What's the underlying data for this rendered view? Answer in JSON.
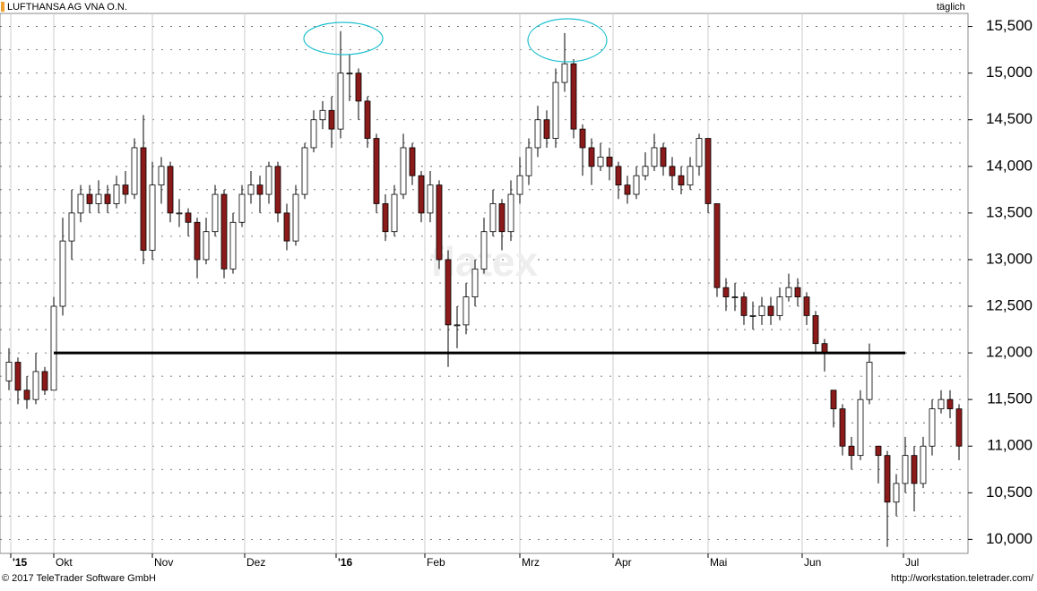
{
  "chart_data": {
    "type": "candlestick",
    "title": "LUFTHANSA AG VNA O.N.",
    "interval_label": "täglich",
    "footer_left": "© 2017 TeleTrader Software GmbH",
    "footer_right": "http://workstation.teletrader.com/",
    "up_color": "#ffffff",
    "down_color": "#8b1a1a",
    "outline_color": "#000000",
    "reference_line": 12000,
    "xlim": [
      -1,
      107
    ],
    "xticks": [
      {
        "value": 0.2,
        "label": "'15"
      },
      {
        "value": 5,
        "label": "Okt"
      },
      {
        "value": 16,
        "label": "Nov"
      },
      {
        "value": 26.3,
        "label": "Dez"
      },
      {
        "value": 36.5,
        "label": "'16"
      },
      {
        "value": 46.4,
        "label": "Feb"
      },
      {
        "value": 57,
        "label": "Mrz"
      },
      {
        "value": 67.4,
        "label": "Apr"
      },
      {
        "value": 78,
        "label": "Mai"
      },
      {
        "value": 88.5,
        "label": "Jun"
      },
      {
        "value": 99.8,
        "label": "Jul"
      }
    ],
    "ylim": [
      9850,
      15640
    ],
    "yticks": [
      {
        "value": 10000,
        "label": "10,000"
      },
      {
        "value": 10500,
        "label": "10,500"
      },
      {
        "value": 11000,
        "label": "11,000"
      },
      {
        "value": 11500,
        "label": "11,500"
      },
      {
        "value": 12000,
        "label": "12,000"
      },
      {
        "value": 12500,
        "label": "12,500"
      },
      {
        "value": 13000,
        "label": "13,000"
      },
      {
        "value": 13500,
        "label": "13,500"
      },
      {
        "value": 14000,
        "label": "14,000"
      },
      {
        "value": 14500,
        "label": "14,500"
      },
      {
        "value": 15000,
        "label": "15,000"
      },
      {
        "value": 15500,
        "label": "15,500"
      }
    ],
    "minor_yticks": [
      10250,
      10750,
      11250,
      11750,
      12250,
      12750,
      13250,
      13750,
      14250,
      14750,
      15250
    ],
    "x": [
      0,
      1,
      2,
      3,
      4,
      5,
      6,
      7,
      8,
      9,
      10,
      11,
      12,
      13,
      14,
      15,
      16,
      17,
      18,
      19,
      20,
      21,
      22,
      23,
      24,
      25,
      26,
      27,
      28,
      29,
      30,
      31,
      32,
      33,
      34,
      35,
      36,
      37,
      38,
      39,
      40,
      41,
      42,
      43,
      44,
      45,
      46,
      47,
      48,
      49,
      50,
      51,
      52,
      53,
      54,
      55,
      56,
      57,
      58,
      59,
      60,
      61,
      62,
      63,
      64,
      65,
      66,
      67,
      68,
      69,
      70,
      71,
      72,
      73,
      74,
      75,
      76,
      77,
      78,
      79,
      80,
      81,
      82,
      83,
      84,
      85,
      86,
      87,
      88,
      89,
      90,
      91,
      92,
      93,
      94,
      95,
      96,
      97,
      98,
      99,
      100,
      101,
      102,
      103,
      104,
      105,
      106
    ],
    "open": [
      11700,
      11900,
      11600,
      11500,
      11800,
      11600,
      12500,
      13200,
      13500,
      13700,
      13600,
      13700,
      13600,
      13800,
      13700,
      14200,
      13100,
      13800,
      14000,
      13500,
      13500,
      13400,
      13000,
      13300,
      13700,
      12900,
      13400,
      13700,
      13800,
      13700,
      14000,
      13500,
      13200,
      13700,
      14200,
      14500,
      14600,
      14400,
      15000,
      15000,
      14700,
      14300,
      13600,
      13300,
      13700,
      14200,
      13900,
      13500,
      13800,
      13000,
      12300,
      12300,
      12600,
      12900,
      13300,
      13600,
      13300,
      13700,
      13900,
      14200,
      14500,
      14300,
      14900,
      15100,
      14400,
      14200,
      14000,
      14100,
      14000,
      13800,
      13700,
      13900,
      14000,
      14200,
      14000,
      13900,
      13800,
      14000,
      14300,
      13600,
      12700,
      12600,
      12600,
      12400,
      12400,
      12500,
      12400,
      12600,
      12700,
      12600,
      12400,
      12100,
      11600,
      11400,
      11000,
      10900,
      11500,
      11000,
      10900,
      10400,
      10600,
      10900,
      10600,
      11000,
      11400,
      11500,
      11400
    ],
    "high": [
      12050,
      11950,
      11750,
      12000,
      11850,
      12600,
      13450,
      13750,
      13800,
      13800,
      13850,
      13800,
      13900,
      13950,
      14300,
      14550,
      14050,
      14100,
      14050,
      13650,
      13550,
      13450,
      13450,
      13800,
      13750,
      13500,
      13800,
      13950,
      13900,
      14050,
      14050,
      13600,
      13800,
      14250,
      14600,
      14700,
      14750,
      15450,
      15200,
      15050,
      14750,
      14350,
      13700,
      13800,
      14350,
      14250,
      13950,
      13950,
      13850,
      13100,
      12500,
      12750,
      13000,
      13450,
      13750,
      13650,
      13850,
      14100,
      14300,
      14650,
      14600,
      15050,
      15430,
      15150,
      14450,
      14300,
      14250,
      14200,
      14050,
      13900,
      14000,
      14150,
      14350,
      14250,
      14100,
      14000,
      14100,
      14350,
      14300,
      13600,
      12800,
      12750,
      12650,
      12550,
      12600,
      12600,
      12700,
      12850,
      12800,
      12650,
      12450,
      12150,
      11600,
      11450,
      11100,
      11600,
      12100,
      11000,
      10950,
      10700,
      11100,
      11000,
      11100,
      11500,
      11600,
      11600,
      11450
    ],
    "low": [
      11600,
      11450,
      11400,
      11450,
      11550,
      11600,
      12400,
      13000,
      13400,
      13500,
      13500,
      13500,
      13550,
      13600,
      13650,
      12950,
      13000,
      13600,
      13400,
      13350,
      13250,
      12800,
      12950,
      13250,
      12800,
      12850,
      13350,
      13600,
      13500,
      13600,
      13400,
      13100,
      13150,
      13650,
      14150,
      14400,
      14200,
      14300,
      14700,
      14500,
      14200,
      13500,
      13200,
      13250,
      13650,
      13800,
      13400,
      13400,
      12900,
      11850,
      12050,
      12200,
      12500,
      12850,
      13250,
      13100,
      13200,
      13600,
      13800,
      14100,
      14200,
      14200,
      14800,
      14300,
      13900,
      13800,
      13950,
      13850,
      13650,
      13600,
      13650,
      13850,
      13950,
      13900,
      13750,
      13700,
      13750,
      13900,
      13500,
      12600,
      12450,
      12450,
      12300,
      12250,
      12300,
      12300,
      12350,
      12550,
      12500,
      12300,
      12000,
      11800,
      11200,
      10900,
      10750,
      10850,
      11450,
      10600,
      9920,
      10250,
      10500,
      10300,
      10550,
      10900,
      11350,
      11300,
      10850
    ],
    "close": [
      11900,
      11600,
      11500,
      11800,
      11600,
      12500,
      13200,
      13500,
      13700,
      13600,
      13700,
      13600,
      13800,
      13700,
      14200,
      13100,
      13800,
      14000,
      13500,
      13500,
      13400,
      13000,
      13300,
      13700,
      12900,
      13400,
      13700,
      13800,
      13700,
      14000,
      13500,
      13200,
      13700,
      14200,
      14500,
      14600,
      14400,
      15000,
      15000,
      14700,
      14300,
      13600,
      13300,
      13700,
      14200,
      13900,
      13500,
      13800,
      13000,
      12300,
      12300,
      12600,
      12900,
      13300,
      13600,
      13300,
      13700,
      13900,
      14200,
      14500,
      14300,
      14900,
      15100,
      14400,
      14200,
      14000,
      14100,
      14000,
      13800,
      13700,
      13900,
      14000,
      14200,
      14000,
      13900,
      13800,
      14000,
      14300,
      13600,
      12700,
      12600,
      12600,
      12400,
      12400,
      12500,
      12400,
      12600,
      12700,
      12600,
      12400,
      12100,
      12000,
      11400,
      11000,
      10900,
      11500,
      11900,
      10900,
      10400,
      10600,
      10900,
      10600,
      11000,
      11400,
      11500,
      11400,
      11000
    ]
  }
}
